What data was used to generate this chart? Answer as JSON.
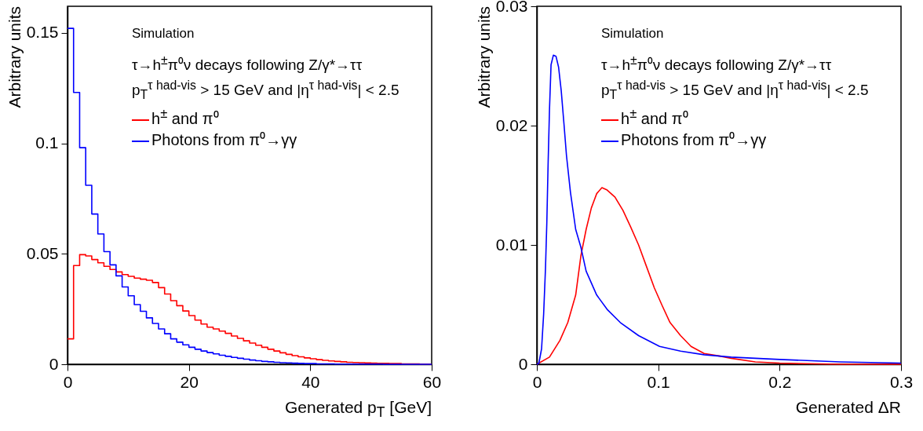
{
  "chart_data": [
    {
      "type": "histogram",
      "xlabel": "Generated p$_{T}$ [GeV]",
      "ylabel": "Arbitrary units",
      "annotations": [
        "Simulation",
        "τ→h$^{±}$π⁰ν decays following Z/γ*→ττ",
        "p$_{T}$$^{τ had-vis}$ > 15 GeV and |η$^{τ had-vis}$| < 2.5"
      ],
      "bins": [
        0,
        1,
        2,
        3,
        4,
        5,
        6,
        7,
        8,
        9,
        10,
        11,
        12,
        13,
        14,
        15,
        16,
        17,
        18,
        19,
        20,
        21,
        22,
        23,
        24,
        25,
        26,
        27,
        28,
        29,
        30,
        31,
        32,
        33,
        34,
        35,
        36,
        37,
        38,
        39,
        40,
        41,
        42,
        43,
        44,
        45,
        46,
        47,
        48,
        49,
        50,
        51,
        52,
        53,
        54,
        55,
        56,
        57,
        58,
        59,
        60
      ],
      "series": [
        {
          "name": "h$^{±}$ and π⁰",
          "color": "#ff0000",
          "values": [
            0.0115,
            0.0447,
            0.0496,
            0.049,
            0.0474,
            0.0459,
            0.0443,
            0.0429,
            0.0418,
            0.0406,
            0.0398,
            0.039,
            0.0385,
            0.038,
            0.037,
            0.0347,
            0.0318,
            0.0288,
            0.0265,
            0.0241,
            0.022,
            0.02,
            0.0182,
            0.0168,
            0.016,
            0.015,
            0.014,
            0.0128,
            0.0117,
            0.0106,
            0.0096,
            0.0086,
            0.0077,
            0.0068,
            0.006,
            0.0052,
            0.0045,
            0.0039,
            0.0034,
            0.0029,
            0.0025,
            0.0021,
            0.0018,
            0.0015,
            0.0013,
            0.0011,
            0.0009,
            0.0008,
            0.0007,
            0.0006,
            0.0005,
            0.0004,
            0.0004,
            0.0003,
            0.0003,
            0.0002,
            0.0002,
            0.0002,
            0.0001,
            0.0001
          ]
        },
        {
          "name": "Photons from π⁰→γγ",
          "color": "#0000ff",
          "values": [
            0.152,
            0.123,
            0.098,
            0.081,
            0.068,
            0.059,
            0.051,
            0.045,
            0.04,
            0.035,
            0.031,
            0.027,
            0.024,
            0.021,
            0.0185,
            0.016,
            0.0138,
            0.0115,
            0.01,
            0.0088,
            0.0077,
            0.0068,
            0.006,
            0.0053,
            0.0047,
            0.0041,
            0.0036,
            0.0031,
            0.0027,
            0.0023,
            0.0019,
            0.0016,
            0.0013,
            0.0011,
            0.0009,
            0.0007,
            0.0006,
            0.0005,
            0.0004,
            0.0003,
            0.0003,
            0.0002,
            0.0002,
            0.0002,
            0.0001,
            0.0001,
            0.0001,
            0.0001,
            0.0001,
            0.0001,
            0.0001,
            0.0001,
            0,
            0,
            0,
            0,
            0,
            0,
            0,
            0
          ]
        }
      ],
      "xlim": [
        0,
        60
      ],
      "xticks": [
        0,
        20,
        40,
        60
      ],
      "ylim": [
        0,
        0.162
      ],
      "yticks": [
        0,
        0.05,
        0.1,
        0.15
      ],
      "legend": "top"
    },
    {
      "type": "line",
      "xlabel": "Generated ΔR",
      "ylabel": "Arbitrary units",
      "annotations": [
        "Simulation",
        "τ→h$^{±}$π⁰ν decays following Z/γ*→ττ",
        "p$_{T}$$^{τ had-vis}$ > 15 GeV and |η$^{τ had-vis}$| < 2.5"
      ],
      "series": [
        {
          "name": "h$^{±}$ and π⁰",
          "color": "#ff0000",
          "x": [
            0,
            0.0104,
            0.019,
            0.0255,
            0.032,
            0.0363,
            0.0406,
            0.0449,
            0.0493,
            0.0536,
            0.0579,
            0.0644,
            0.0709,
            0.0773,
            0.0838,
            0.0903,
            0.0968,
            0.1033,
            0.1097,
            0.1184,
            0.127,
            0.1378,
            0.15,
            0.16,
            0.18,
            0.2,
            0.25,
            0.3
          ],
          "values": [
            0,
            0.0006,
            0.002,
            0.0035,
            0.0058,
            0.0091,
            0.0113,
            0.0131,
            0.0143,
            0.0148,
            0.0146,
            0.014,
            0.0129,
            0.0115,
            0.01,
            0.0082,
            0.0064,
            0.0049,
            0.0035,
            0.0024,
            0.0015,
            0.0009,
            0.0007,
            0.0005,
            0.0002,
            0.0001,
            0,
            0
          ]
        },
        {
          "name": "Photons from π⁰→γγ",
          "color": "#0000ff",
          "x": [
            0,
            0.0017,
            0.0039,
            0.0056,
            0.0071,
            0.0082,
            0.0093,
            0.0104,
            0.0117,
            0.0136,
            0.0158,
            0.0179,
            0.0201,
            0.0223,
            0.0244,
            0.0277,
            0.032,
            0.0363,
            0.0406,
            0.0493,
            0.0579,
            0.0687,
            0.0838,
            0.1011,
            0.1184,
            0.1378,
            0.16,
            0.2,
            0.25,
            0.3
          ],
          "values": [
            0,
            0.0001,
            0.0013,
            0.0042,
            0.008,
            0.0118,
            0.0169,
            0.0213,
            0.0251,
            0.0259,
            0.0258,
            0.0249,
            0.0229,
            0.0202,
            0.0175,
            0.0144,
            0.0113,
            0.0098,
            0.0078,
            0.0058,
            0.0046,
            0.0035,
            0.0024,
            0.0015,
            0.0011,
            0.0008,
            0.0006,
            0.0004,
            0.0002,
            0.0001
          ]
        }
      ],
      "xlim": [
        0,
        0.3
      ],
      "xticks": [
        0,
        0.1,
        0.2,
        0.3
      ],
      "ylim": [
        0,
        0.03
      ],
      "yticks": [
        0,
        0.01,
        0.02,
        0.03
      ],
      "legend": "top"
    }
  ]
}
